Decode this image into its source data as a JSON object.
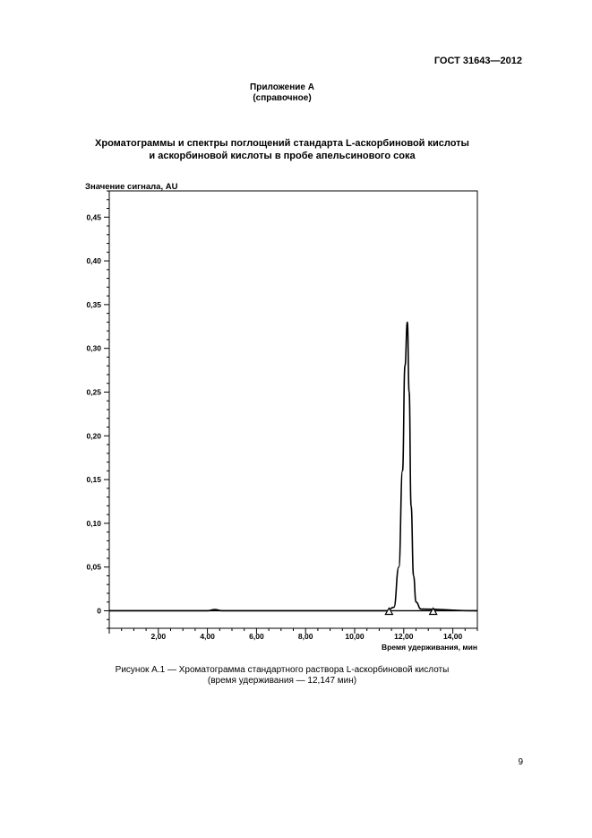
{
  "header": {
    "standard": "ГОСТ 31643—2012"
  },
  "appendix": {
    "title": "Приложение А",
    "note": "(справочное)"
  },
  "section_title": {
    "line1": "Хроматограммы и спектры поглощений стандарта L-аскорбиновой кислоты",
    "line2": "и аскорбиновой кислоты в пробе апельсинового сока"
  },
  "chart_data": {
    "type": "line",
    "ylabel": "Значение сигнала, AU",
    "xlabel": "Время удерживания, мин",
    "xlim": [
      0,
      15.0
    ],
    "ylim": [
      -0.02,
      0.48
    ],
    "x_ticks": [
      "2,00",
      "4,00",
      "6,00",
      "8,00",
      "10,00",
      "12,00",
      "14,00"
    ],
    "x_tick_values": [
      2,
      4,
      6,
      8,
      10,
      12,
      14
    ],
    "y_ticks": [
      "0",
      "0,05",
      "0,10",
      "0,15",
      "0,20",
      "0,25",
      "0,30",
      "0,35",
      "0,40",
      "0,45"
    ],
    "y_tick_values": [
      0,
      0.05,
      0.1,
      0.15,
      0.2,
      0.25,
      0.3,
      0.35,
      0.4,
      0.45
    ],
    "grid": false,
    "series": [
      {
        "x": [
          0,
          4.0,
          4.3,
          4.6,
          11.3,
          11.6,
          11.8,
          11.95,
          12.05,
          12.147,
          12.22,
          12.3,
          12.4,
          12.5,
          12.7,
          15.0
        ],
        "y": [
          0,
          0,
          0.0015,
          0,
          0,
          0.004,
          0.05,
          0.16,
          0.28,
          0.33,
          0.25,
          0.12,
          0.04,
          0.01,
          0.002,
          0
        ]
      }
    ],
    "markers": [
      {
        "x": 11.4,
        "y": 0,
        "shape": "triangle"
      },
      {
        "x": 13.2,
        "y": 0,
        "shape": "triangle"
      }
    ]
  },
  "caption": {
    "line1": "Рисунок А.1 — Хроматограмма стандартного раствора L-аскорбиновой кислоты",
    "line2": "(время удерживания — 12,147 мин)"
  },
  "page_number": "9"
}
